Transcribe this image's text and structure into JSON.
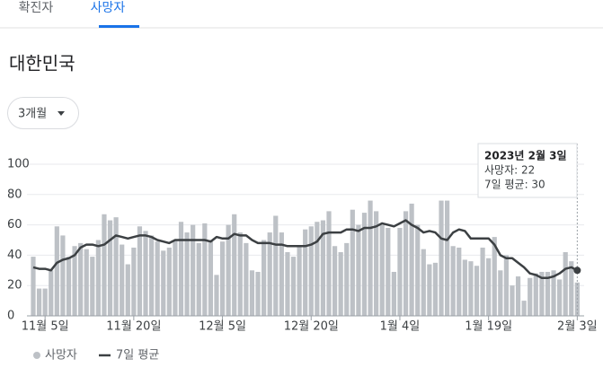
{
  "tabs": [
    "확진자",
    "사망자"
  ],
  "heading": "대한민국",
  "dropdown": "3개월",
  "tooltip": {
    "title": "2023년 2월 3일",
    "lines": [
      "사망자: 22",
      "7일 평균: 30"
    ]
  },
  "chart_data": {
    "type": "bar-line",
    "categories": [
      null,
      null,
      "11월 5일",
      null,
      null,
      null,
      null,
      null,
      null,
      null,
      null,
      null,
      null,
      null,
      null,
      null,
      null,
      "11월 20일",
      null,
      null,
      null,
      null,
      null,
      null,
      null,
      null,
      null,
      null,
      null,
      null,
      null,
      null,
      "12월 5일",
      null,
      null,
      null,
      null,
      null,
      null,
      null,
      null,
      null,
      null,
      null,
      null,
      null,
      null,
      "12월 20일",
      null,
      null,
      null,
      null,
      null,
      null,
      null,
      null,
      null,
      null,
      null,
      null,
      null,
      null,
      "1월 4일",
      null,
      null,
      null,
      null,
      null,
      null,
      null,
      null,
      null,
      null,
      null,
      null,
      null,
      null,
      "1월 19일",
      null,
      null,
      null,
      null,
      null,
      null,
      null,
      null,
      null,
      null,
      null,
      null,
      null,
      null,
      "2월 3일"
    ],
    "series": [
      {
        "name": "사망자",
        "color": "#bdc1c6",
        "values": [
          39,
          18,
          18,
          30,
          59,
          53,
          39,
          46,
          48,
          44,
          39,
          50,
          67,
          63,
          65,
          47,
          34,
          45,
          59,
          56,
          53,
          49,
          43,
          45,
          50,
          62,
          55,
          60,
          48,
          61,
          50,
          27,
          49,
          60,
          67,
          55,
          48,
          30,
          29,
          50,
          55,
          66,
          55,
          42,
          39,
          46,
          57,
          59,
          62,
          63,
          69,
          46,
          42,
          48,
          70,
          60,
          68,
          76,
          69,
          60,
          58,
          29,
          58,
          69,
          74,
          60,
          44,
          34,
          35,
          76,
          76,
          46,
          45,
          37,
          36,
          33,
          45,
          38,
          52,
          30,
          40,
          20,
          26,
          10,
          25,
          28,
          29,
          29,
          30,
          24,
          42,
          36,
          22
        ]
      },
      {
        "name": "7일 평균",
        "color": "#3c4043",
        "values": [
          32,
          31,
          31,
          30,
          35,
          37,
          38,
          40,
          45,
          47,
          47,
          46,
          47,
          50,
          53,
          52,
          51,
          52,
          53,
          53,
          52,
          50,
          49,
          48,
          50,
          50,
          50,
          50,
          50,
          50,
          49,
          52,
          51,
          51,
          54,
          53,
          53,
          50,
          48,
          48,
          48,
          47,
          47,
          46,
          46,
          46,
          46,
          47,
          49,
          54,
          55,
          55,
          55,
          57,
          57,
          56,
          58,
          58,
          59,
          61,
          60,
          59,
          61,
          63,
          60,
          58,
          55,
          56,
          55,
          51,
          50,
          55,
          57,
          56,
          51,
          51,
          51,
          51,
          47,
          40,
          38,
          38,
          35,
          32,
          28,
          27,
          25,
          25,
          26,
          28,
          31,
          32,
          30
        ]
      }
    ],
    "ylim": [
      0,
      100
    ],
    "yticks": [
      0,
      20,
      40,
      60,
      80,
      100
    ],
    "grid": true
  }
}
